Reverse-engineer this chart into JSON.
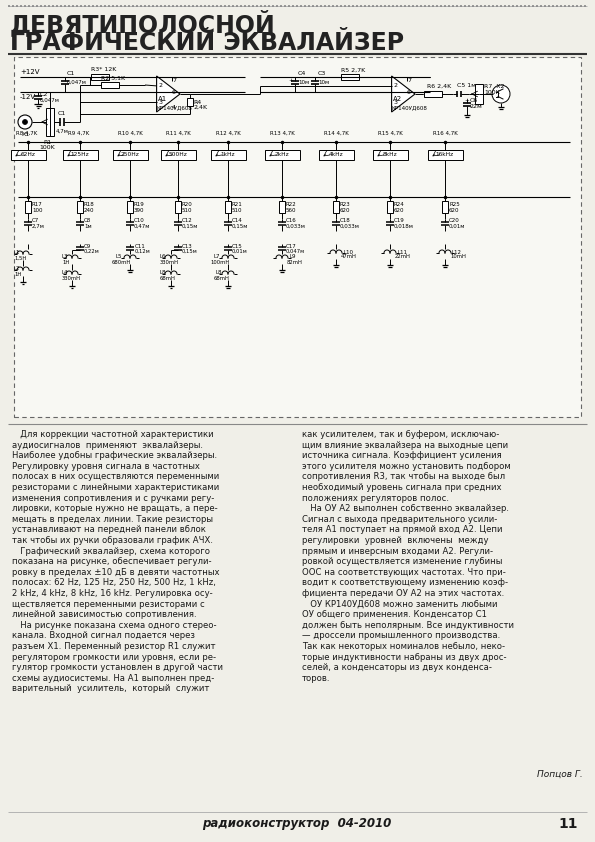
{
  "title_line1": "ДЕВЯТИПОЛОСНОЙ",
  "title_line2": "ГРАФИЧЕСКИЙ ЭКВАЛАЙЗЕР",
  "bg_color": "#f0efe8",
  "text_color": "#1a1a1a",
  "body_text_left": [
    "   Для коррекции частотной характеристики",
    "аудиосигналов  применяют  эквалайзеры.",
    "Наиболее удобны графические эквалайзеры.",
    "Регулировку уровня сигнала в частотных",
    "полосах в них осуществляются переменными",
    "резисторами с линейными характеристиками",
    "изменения сопротивления и с ручками регу-",
    "лировки, которые нужно не вращать, а пере-",
    "мещать в пределах линии. Такие резисторы",
    "устанавливают на передней панели вблок",
    "так чтобы их ручки образовали график АЧХ.",
    "   Графический эквалайзер, схема которого",
    "показана на рисунке, обеспечивает регули-",
    "ровку в пределах ±10 дБ в девяти частотных",
    "полосах: 62 Hz, 125 Hz, 250 Hz, 500 Hz, 1 kHz,",
    "2 kHz, 4 kHz, 8 kHz, 16 kHz. Регулировка осу-",
    "ществляется переменными резисторами с",
    "линейной зависимостью сопротивления.",
    "   На рисунке показана схема одного стерео-",
    "канала. Входной сигнал подается через",
    "разъем X1. Переменный резистор R1 служит",
    "регулятором громкости или уровня, если ре-",
    "гулятор громкости установлен в другой части",
    "схемы аудиосистемы. На А1 выполнен пред-",
    "варительный  усилитель,  который  служит"
  ],
  "body_text_right": [
    "как усилителем, так и буфером, исключаю-",
    "щим влияние эквалайзера на выходные цепи",
    "источника сигнала. Коэффициент усиления",
    "этого усилителя можно установить подбором",
    "сопротивления R3, так чтобы на выходе был",
    "необходимый уровень сигнала при средних",
    "положениях регуляторов полос.",
    "   На ОУ А2 выполнен собственно эквалайзер.",
    "Сигнал с выхода предварительного усили-",
    "теля А1 поступает на прямой вход А2. Цепи",
    "регулировки  уровней  включены  между",
    "прямым и инверсным входами А2. Регули-",
    "ровкой осуществляется изменение глубины",
    "ООС на соответствующих частотах. Что при-",
    "водит к соответствующему изменению коэф-",
    "фициента передачи ОУ А2 на этих частотах.",
    "   ОУ КР140УД608 можно заменить любыми",
    "ОУ общего применения. Конденсатор С1",
    "должен быть неполярным. Все индуктивности",
    "— дроссели промышленного производства.",
    "Так как некоторых номиналов небыло, неко-",
    "торые индуктивности набраны из двух дрос-",
    "селей, а конденсаторы из двух конденса-",
    "торов."
  ],
  "author": "Попцов Г.",
  "footer_italic": "радиоконструктор  04-2010",
  "footer_page": "11"
}
